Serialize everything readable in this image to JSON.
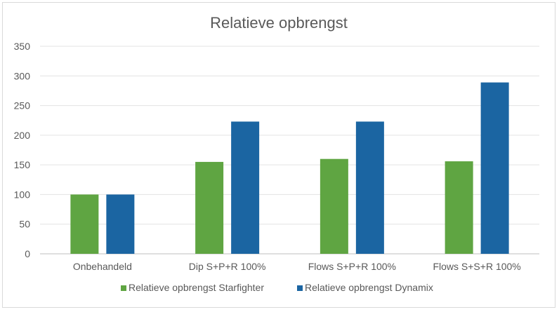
{
  "chart_data": {
    "type": "bar",
    "title": "Relatieve opbrengst",
    "xlabel": "",
    "ylabel": "",
    "categories": [
      "Onbehandeld",
      "Dip S+P+R 100%",
      "Flows S+P+R 100%",
      "Flows S+S+R 100%"
    ],
    "series": [
      {
        "name": "Relatieve opbrengst Starfighter",
        "values": [
          100,
          155,
          160,
          156
        ],
        "color": "#5fa542"
      },
      {
        "name": "Relatieve opbrengst Dynamix",
        "values": [
          100,
          223,
          223,
          289
        ],
        "color": "#1b65a2"
      }
    ],
    "ylim": [
      0,
      350
    ],
    "yticks": [
      0,
      50,
      100,
      150,
      200,
      250,
      300,
      350
    ],
    "grid": true,
    "legend_position": "bottom"
  }
}
